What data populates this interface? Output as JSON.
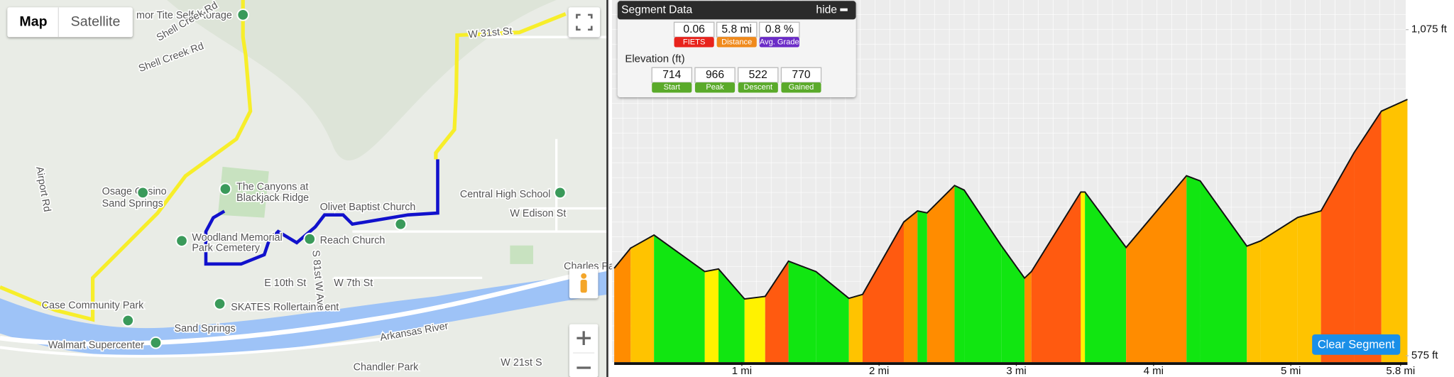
{
  "map": {
    "buttons": [
      "Map",
      "Satellite"
    ],
    "labels": [
      "mor Tite Self Storage",
      "Shell Creek Rd",
      "Shell Creek Rd",
      "Airport Rd",
      "Osage Casino",
      "Sand Springs",
      "The Canyons at",
      "Blackjack Ridge",
      "Woodland Memorial",
      "Park Cemetery",
      "Olivet Baptist Church",
      "Reach Church",
      "Central High School",
      "W Edison St",
      "Case Community Park",
      "Sand Springs",
      "SKATES Rollertainment",
      "Walmart Supercenter",
      "Arkansas River",
      "Chandler Park",
      "Charles Page",
      "W 21st S",
      "E 10th St",
      "W 7th St",
      "S 81st W Ave",
      "W 31st St"
    ]
  },
  "panel": {
    "title": "Segment Data",
    "hide": "hide",
    "stats": [
      {
        "value": "0.06",
        "label": "FIETS"
      },
      {
        "value": "5.8 mi",
        "label": "Distance"
      },
      {
        "value": "0.8 %",
        "label": "Avg. Grade"
      }
    ],
    "elevation_title": "Elevation (ft)",
    "elevation": [
      {
        "value": 714,
        "label": "Start"
      },
      {
        "value": 966,
        "label": "Peak"
      },
      {
        "value": 522,
        "label": "Descent"
      },
      {
        "value": 770,
        "label": "Gained"
      }
    ]
  },
  "chart_data": {
    "type": "area",
    "x": [
      0.07,
      0.19,
      0.36,
      0.73,
      0.83,
      1.02,
      1.17,
      1.34,
      1.54,
      1.78,
      1.88,
      2.18,
      2.28,
      2.35,
      2.55,
      2.62,
      2.89,
      3.06,
      3.11,
      3.47,
      3.5,
      3.8,
      4.24,
      4.34,
      4.68,
      4.78,
      5.05,
      5.22,
      5.46,
      5.66,
      5.85
    ],
    "values": [
      709,
      740,
      760,
      704,
      708,
      662,
      666,
      720,
      704,
      663,
      669,
      780,
      797,
      794,
      836,
      829,
      744,
      694,
      704,
      826,
      826,
      741,
      851,
      843,
      743,
      751,
      787,
      797,
      886,
      950,
      968
    ],
    "xlim": [
      0,
      5.85
    ],
    "ylim": [
      575,
      1075
    ],
    "xticks": [
      {
        "value": 1,
        "label": "1 mi"
      },
      {
        "value": 2,
        "label": "2 mi"
      },
      {
        "value": 3,
        "label": "3 mi"
      },
      {
        "value": 4,
        "label": "4 mi"
      },
      {
        "value": 5,
        "label": "5 mi"
      },
      {
        "value": 5.8,
        "label": "5.8 mi"
      }
    ],
    "yticks": [
      {
        "value": 575,
        "label": "575 ft"
      },
      {
        "value": 1075,
        "label": "1,075 ft"
      }
    ]
  },
  "clear_button": "Clear Segment"
}
